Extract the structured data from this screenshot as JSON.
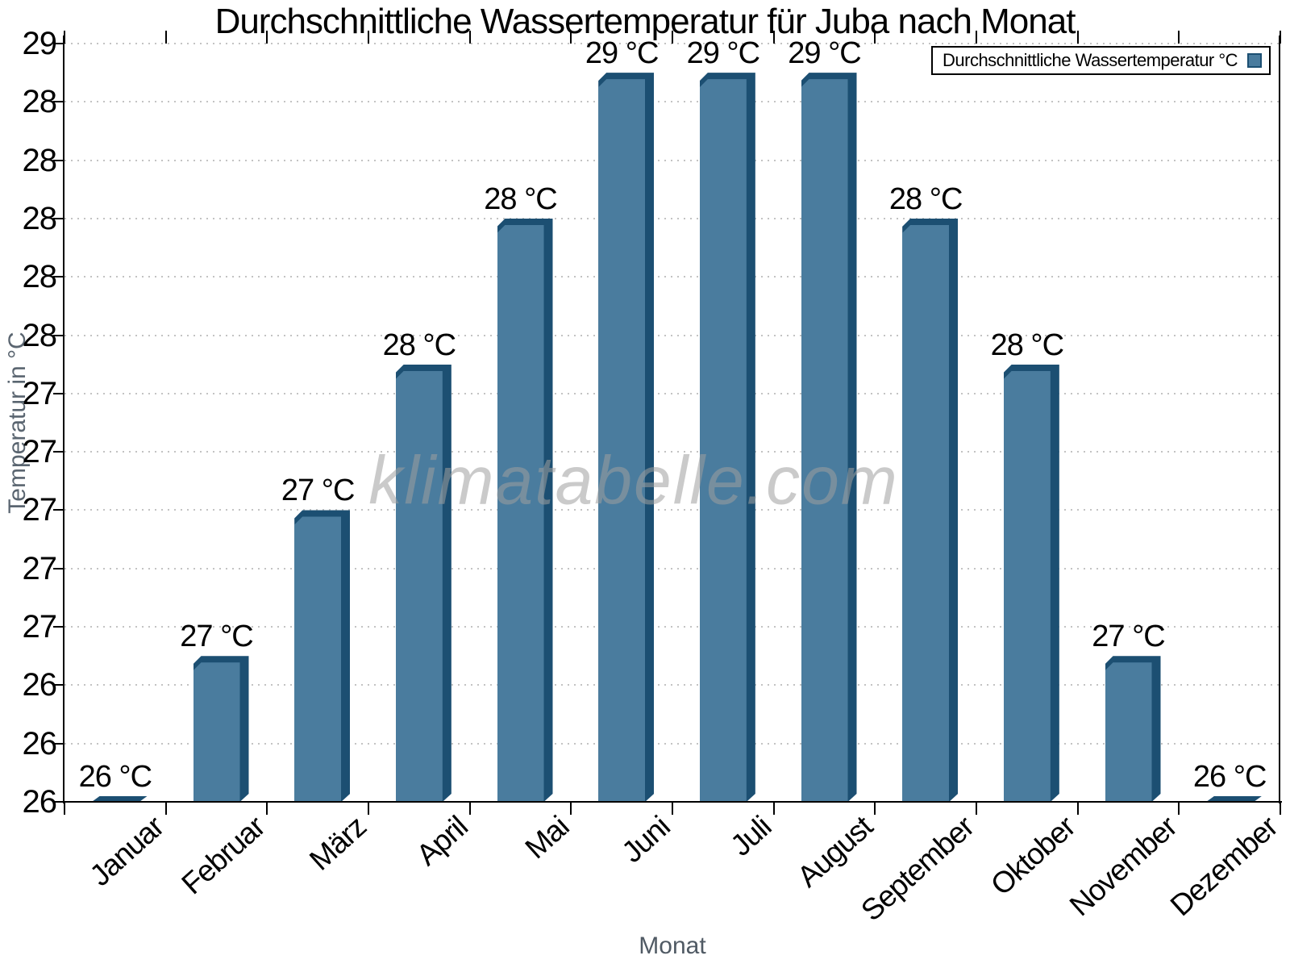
{
  "title": "Durchschnittliche Wassertemperatur für Juba nach Monat",
  "watermark": "klimatabelle.com",
  "legend": {
    "label": "Durchschnittliche Wassertemperatur °C",
    "position": "top-right"
  },
  "axes": {
    "x_title": "Monat",
    "y_title": "Temperatur in °C",
    "y_tick_labels_top_to_bottom": [
      "29",
      "28",
      "28",
      "28",
      "28",
      "28",
      "27",
      "27",
      "27",
      "27",
      "27",
      "26",
      "26",
      "26"
    ]
  },
  "chart_data": {
    "type": "bar",
    "title": "Durchschnittliche Wassertemperatur für Juba nach Monat",
    "xlabel": "Monat",
    "ylabel": "Temperatur in °C",
    "categories": [
      "Januar",
      "Februar",
      "März",
      "April",
      "Mai",
      "Juni",
      "Juli",
      "August",
      "September",
      "Oktober",
      "November",
      "Dezember"
    ],
    "values": [
      26,
      27,
      27,
      28,
      28,
      29,
      29,
      29,
      28,
      28,
      27,
      26
    ],
    "bar_labels": [
      "26 °C",
      "27 °C",
      "27 °C",
      "28 °C",
      "28 °C",
      "29 °C",
      "29 °C",
      "29 °C",
      "28 °C",
      "28 °C",
      "27 °C",
      "26 °C"
    ],
    "plot_values": [
      26.42,
      26.9,
      27.4,
      27.9,
      28.4,
      28.9,
      28.9,
      28.9,
      28.4,
      27.9,
      26.9,
      26.42
    ],
    "ylim": [
      26.4,
      29.0
    ],
    "y_tick_step": 0.2,
    "grid": "horizontal-dotted",
    "legend_position": "top-right"
  },
  "colors": {
    "bar_face": "#4a7c9e",
    "bar_side": "#1c4f72",
    "grid": "#c3c3c3",
    "axis": "#000000",
    "axis_title_text": "#5a6570",
    "watermark": "#9f9f9f",
    "background": "#ffffff"
  }
}
